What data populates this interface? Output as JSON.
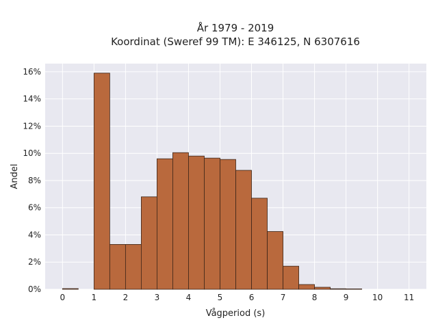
{
  "chart_data": {
    "type": "bar",
    "title_lines": [
      "År 1979 - 2019",
      "Koordinat (Sweref 99 TM): E 346125, N 6307616"
    ],
    "xlabel": "Vågperiod (s)",
    "ylabel": "Andel",
    "bin_width": 0.5,
    "bins": [
      {
        "x0": 0.0,
        "value": 0.05
      },
      {
        "x0": 0.5,
        "value": 0.0
      },
      {
        "x0": 1.0,
        "value": 15.9
      },
      {
        "x0": 1.5,
        "value": 3.3
      },
      {
        "x0": 2.0,
        "value": 3.3
      },
      {
        "x0": 2.5,
        "value": 6.8
      },
      {
        "x0": 3.0,
        "value": 9.6
      },
      {
        "x0": 3.5,
        "value": 10.05
      },
      {
        "x0": 4.0,
        "value": 9.8
      },
      {
        "x0": 4.5,
        "value": 9.65
      },
      {
        "x0": 5.0,
        "value": 9.55
      },
      {
        "x0": 5.5,
        "value": 8.75
      },
      {
        "x0": 6.0,
        "value": 6.7
      },
      {
        "x0": 6.5,
        "value": 4.25
      },
      {
        "x0": 7.0,
        "value": 1.7
      },
      {
        "x0": 7.5,
        "value": 0.35
      },
      {
        "x0": 8.0,
        "value": 0.15
      },
      {
        "x0": 8.5,
        "value": 0.04
      },
      {
        "x0": 9.0,
        "value": 0.03
      }
    ],
    "xlim": [
      -0.55,
      11.55
    ],
    "ylim": [
      0,
      16.6
    ],
    "xticks": [
      0,
      1,
      2,
      3,
      4,
      5,
      6,
      7,
      8,
      9,
      10,
      11
    ],
    "xtick_labels": [
      "0",
      "1",
      "2",
      "3",
      "4",
      "5",
      "6",
      "7",
      "8",
      "9",
      "10",
      "11"
    ],
    "yticks": [
      0,
      2,
      4,
      6,
      8,
      10,
      12,
      14,
      16
    ],
    "ytick_labels": [
      "0%",
      "2%",
      "4%",
      "6%",
      "8%",
      "10%",
      "12%",
      "14%",
      "16%"
    ],
    "grid": true,
    "colors": {
      "bar_fill": "#b9693d",
      "bar_stroke": "#3a2418",
      "plot_bg": "#e8e8f0",
      "grid": "#ffffff"
    }
  }
}
